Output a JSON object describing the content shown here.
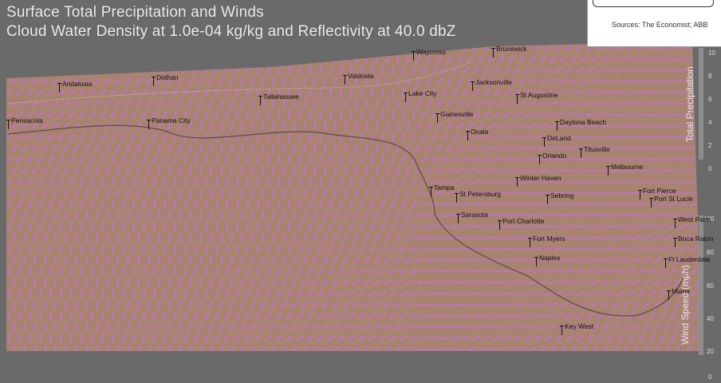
{
  "title": {
    "line1": "Surface Total Precipitation and Winds",
    "line2": "Cloud Water Density at 1.0e-04 kg/kg and Reflectivity at 40.0 dbZ"
  },
  "source_note": "Sources: The Economist; ABB",
  "colorbar_precip": {
    "label": "Total Precipitation",
    "ticks": [
      "10",
      "8",
      "6",
      "4",
      "2",
      "0"
    ]
  },
  "colorbar_wind": {
    "label": "Wind Speed (mph)",
    "ticks": [
      "100",
      "80",
      "60",
      "40",
      "20",
      "0"
    ]
  },
  "colors": {
    "land_fill": "#a88470",
    "background": "#6a6a6a",
    "wind_vector": "#c46fd0",
    "wind_vector_light": "#e08ae6"
  },
  "cities": [
    {
      "name": "Waycross"
    },
    {
      "name": "Brunswick"
    },
    {
      "name": "Andalusia"
    },
    {
      "name": "Dothan"
    },
    {
      "name": "Valdosta"
    },
    {
      "name": "Tallahassee"
    },
    {
      "name": "Lake City"
    },
    {
      "name": "Jacksonville"
    },
    {
      "name": "St Augustine"
    },
    {
      "name": "Pensacola"
    },
    {
      "name": "Panama City"
    },
    {
      "name": "Gainesville"
    },
    {
      "name": "Ocala"
    },
    {
      "name": "Daytona Beach"
    },
    {
      "name": "DeLand"
    },
    {
      "name": "Orlando"
    },
    {
      "name": "Titusville"
    },
    {
      "name": "Melbourne"
    },
    {
      "name": "Winter Haven"
    },
    {
      "name": "Tampa"
    },
    {
      "name": "St Petersburg"
    },
    {
      "name": "Sebring"
    },
    {
      "name": "Fort Pierce"
    },
    {
      "name": "Port St Lucie"
    },
    {
      "name": "Sarasota"
    },
    {
      "name": "Port Charlotte"
    },
    {
      "name": "Fort Myers"
    },
    {
      "name": "Naples"
    },
    {
      "name": "Key West"
    },
    {
      "name": "West Palm"
    },
    {
      "name": "Boca Raton"
    },
    {
      "name": "Ft Lauderdale"
    },
    {
      "name": "Miami"
    }
  ]
}
